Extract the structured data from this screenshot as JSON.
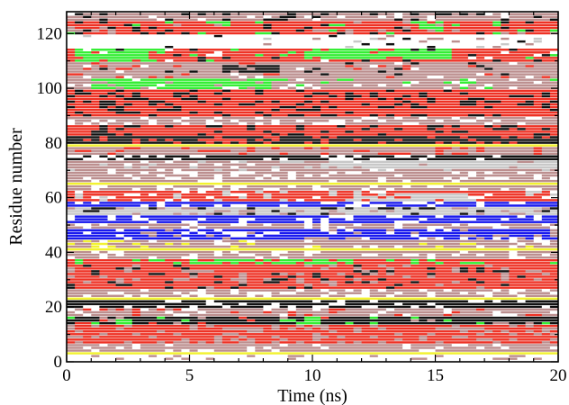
{
  "chart_data": {
    "type": "heatmap",
    "title": "",
    "xlabel": "Time (ns)",
    "ylabel": "Residue number",
    "xlim": [
      0,
      20
    ],
    "ylim": [
      0,
      128
    ],
    "xticks": [
      "0",
      "5",
      "10",
      "15",
      "20"
    ],
    "yticks": [
      "0",
      "20",
      "40",
      "60",
      "80",
      "100",
      "120"
    ],
    "grid": false,
    "legend": "none",
    "colors": {
      "red": "#ee3124",
      "rosy": "#bc8f8f",
      "white": "#ffffff",
      "black": "#111111",
      "green": "#33ee33",
      "blue": "#1a1aee",
      "yellow": "#f2f230",
      "gray": "#c8c8c8"
    },
    "residue_segments": [
      {
        "from": 1,
        "to": 2,
        "base": "white",
        "mix": [
          "rosy"
        ]
      },
      {
        "from": 3,
        "to": 3,
        "base": "yellow",
        "mix": []
      },
      {
        "from": 4,
        "to": 6,
        "base": "rosy",
        "mix": [
          "white"
        ]
      },
      {
        "from": 7,
        "to": 13,
        "base": "red",
        "mix": [
          "rosy"
        ]
      },
      {
        "from": 14,
        "to": 16,
        "base": "black",
        "mix": [
          "red",
          "green",
          "rosy"
        ]
      },
      {
        "from": 17,
        "to": 19,
        "base": "rosy",
        "mix": [
          "white",
          "red"
        ]
      },
      {
        "from": 20,
        "to": 22,
        "base": "black",
        "mix": [
          "white"
        ]
      },
      {
        "from": 23,
        "to": 23,
        "base": "yellow",
        "mix": []
      },
      {
        "from": 24,
        "to": 26,
        "base": "rosy",
        "mix": [
          "white"
        ]
      },
      {
        "from": 27,
        "to": 35,
        "base": "red",
        "mix": [
          "black",
          "rosy"
        ]
      },
      {
        "from": 36,
        "to": 37,
        "base": "red",
        "mix": [
          "green"
        ]
      },
      {
        "from": 38,
        "to": 40,
        "base": "rosy",
        "mix": [
          "white"
        ]
      },
      {
        "from": 41,
        "to": 41,
        "base": "yellow",
        "mix": []
      },
      {
        "from": 42,
        "to": 44,
        "base": "rosy",
        "mix": [
          "white",
          "yellow"
        ]
      },
      {
        "from": 45,
        "to": 48,
        "base": "blue",
        "mix": [
          "white",
          "rosy"
        ]
      },
      {
        "from": 49,
        "to": 50,
        "base": "rosy",
        "mix": [
          "white"
        ]
      },
      {
        "from": 51,
        "to": 53,
        "base": "blue",
        "mix": [
          "white"
        ]
      },
      {
        "from": 54,
        "to": 56,
        "base": "gray",
        "mix": [
          "black",
          "rosy"
        ]
      },
      {
        "from": 57,
        "to": 58,
        "base": "blue",
        "mix": [
          "white"
        ]
      },
      {
        "from": 59,
        "to": 62,
        "base": "red",
        "mix": [
          "gray",
          "white"
        ]
      },
      {
        "from": 63,
        "to": 64,
        "base": "rosy",
        "mix": [
          "white"
        ]
      },
      {
        "from": 65,
        "to": 65,
        "base": "yellow",
        "mix": []
      },
      {
        "from": 66,
        "to": 69,
        "base": "rosy",
        "mix": [
          "white"
        ]
      },
      {
        "from": 70,
        "to": 73,
        "base": "rosy",
        "mix": [
          "white",
          "gray"
        ]
      },
      {
        "from": 74,
        "to": 75,
        "base": "black",
        "mix": [
          "white"
        ]
      },
      {
        "from": 76,
        "to": 78,
        "base": "rosy",
        "mix": [
          "red"
        ]
      },
      {
        "from": 79,
        "to": 79,
        "base": "yellow",
        "mix": []
      },
      {
        "from": 80,
        "to": 82,
        "base": "black",
        "mix": [
          "red"
        ]
      },
      {
        "from": 83,
        "to": 86,
        "base": "red",
        "mix": [
          "black"
        ]
      },
      {
        "from": 87,
        "to": 89,
        "base": "rosy",
        "mix": [
          "white"
        ]
      },
      {
        "from": 90,
        "to": 99,
        "base": "red",
        "mix": [
          "black"
        ]
      },
      {
        "from": 100,
        "to": 103,
        "base": "rosy",
        "mix": [
          "green",
          "white"
        ]
      },
      {
        "from": 104,
        "to": 109,
        "base": "rosy",
        "mix": [
          "black",
          "white",
          "red"
        ]
      },
      {
        "from": 110,
        "to": 114,
        "base": "red",
        "mix": [
          "green",
          "white",
          "black"
        ]
      },
      {
        "from": 115,
        "to": 119,
        "base": "white",
        "mix": [
          "rosy",
          "black",
          "gray"
        ]
      },
      {
        "from": 120,
        "to": 124,
        "base": "red",
        "mix": [
          "black",
          "green",
          "rosy"
        ]
      },
      {
        "from": 125,
        "to": 127,
        "base": "rosy",
        "mix": [
          "white",
          "black"
        ]
      }
    ],
    "patches": [
      {
        "res_from": 110,
        "res_to": 114,
        "t_from": 0.3,
        "t_to": 3.6,
        "color": "green"
      },
      {
        "res_from": 111,
        "res_to": 114,
        "t_from": 9.8,
        "t_to": 15.8,
        "color": "green"
      },
      {
        "res_from": 122,
        "res_to": 124,
        "t_from": 14.3,
        "t_to": 15.3,
        "color": "green"
      },
      {
        "res_from": 100,
        "res_to": 103,
        "t_from": 1.0,
        "t_to": 8.2,
        "color": "green"
      },
      {
        "res_from": 36,
        "res_to": 37,
        "t_from": 5.0,
        "t_to": 11.5,
        "color": "green"
      },
      {
        "res_from": 14,
        "res_to": 15,
        "t_from": 2.1,
        "t_to": 2.6,
        "color": "green"
      },
      {
        "res_from": 14,
        "res_to": 15,
        "t_from": 9.3,
        "t_to": 10.2,
        "color": "green"
      },
      {
        "res_from": 115,
        "res_to": 119,
        "t_from": 0.0,
        "t_to": 10.5,
        "color": "white"
      },
      {
        "res_from": 106,
        "res_to": 108,
        "t_from": 6.5,
        "t_to": 8.5,
        "color": "black"
      },
      {
        "res_from": 74,
        "res_to": 75,
        "t_from": 15.2,
        "t_to": 20.0,
        "color": "black"
      },
      {
        "res_from": 71,
        "res_to": 73,
        "t_from": 10.5,
        "t_to": 20.0,
        "color": "gray"
      },
      {
        "res_from": 59,
        "res_to": 61,
        "t_from": 11.5,
        "t_to": 16.5,
        "color": "gray"
      }
    ]
  }
}
